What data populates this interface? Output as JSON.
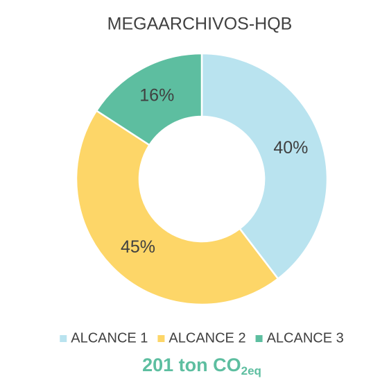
{
  "chart_data": {
    "type": "donut",
    "title": "MEGAARCHIVOS-HQB",
    "categories": [
      "ALCANCE 1",
      "ALCANCE 2",
      "ALCANCE 3"
    ],
    "values": [
      40,
      45,
      16
    ],
    "value_labels": [
      "40%",
      "45%",
      "16%"
    ],
    "colors": [
      "#b9e3ef",
      "#fdd668",
      "#5dbea0"
    ],
    "legend": "bottom",
    "annotation": {
      "text": "201 ton CO",
      "subscript": "2eq",
      "color": "#5dbea0"
    }
  }
}
